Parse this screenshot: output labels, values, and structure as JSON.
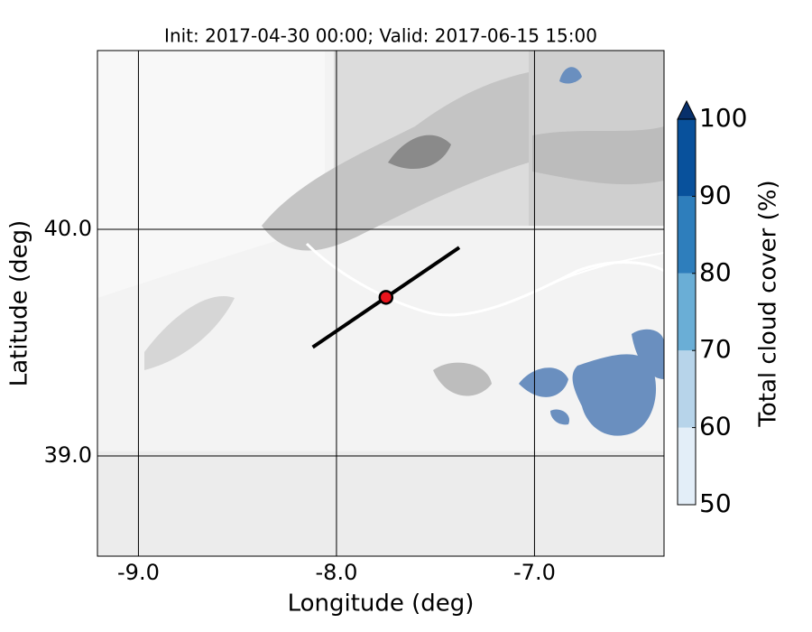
{
  "map": {
    "title": "Init: 2017-04-30 00:00; Valid: 2017-06-15 15:00",
    "xlabel": "Longitude (deg)",
    "ylabel": "Latitude (deg)",
    "xlim": [
      -9.207,
      -6.346
    ],
    "ylim": [
      38.558,
      40.789
    ],
    "xticks": [
      {
        "value": -9,
        "label": "-9.0"
      },
      {
        "value": -8,
        "label": "-8.0"
      },
      {
        "value": -7,
        "label": "-7.0"
      }
    ],
    "yticks": [
      {
        "value": 39,
        "label": "39.0"
      },
      {
        "value": 40,
        "label": "40.0"
      }
    ],
    "cross_section": {
      "lon": [
        -8.12,
        -7.38
      ],
      "lat": [
        39.48,
        39.92
      ]
    },
    "point": {
      "lon": -7.75,
      "lat": 39.7,
      "color": "#e8141c"
    },
    "colorbar": {
      "label": "Total cloud cover (%)",
      "lim": [
        50,
        100
      ],
      "ticks": [
        50,
        60,
        70,
        80,
        90,
        100
      ],
      "colors": [
        "#e3eef8",
        "#b7d4ea",
        "#6aaed6",
        "#2e7ebc",
        "#08519c"
      ],
      "extend_color": "#08306b"
    }
  }
}
